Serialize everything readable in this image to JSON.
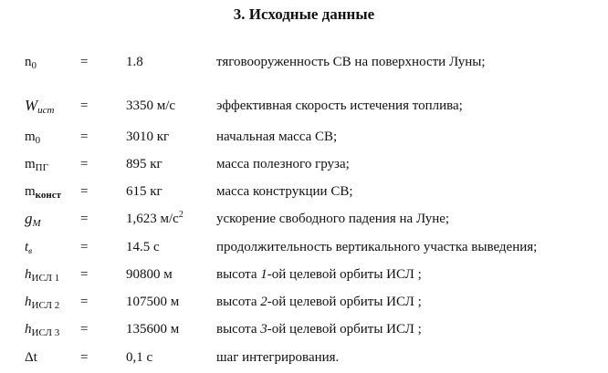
{
  "title": "3. Исходные данные",
  "rows": [
    {
      "sym": "n",
      "sub": "0",
      "eq": "=",
      "val": "1.8",
      "sup": "",
      "desc_pre": "тяговооруженность СВ на поверхности Луны;",
      "desc_it": "",
      "desc_post": ""
    },
    {
      "sym": "W",
      "sub": "ucm",
      "eq": "=",
      "val": "3350 м/с",
      "sup": "",
      "desc_pre": "эффективная скорость истечения топлива;",
      "desc_it": "",
      "desc_post": ""
    },
    {
      "sym": "m",
      "sub": "0",
      "eq": "=",
      "val": "3010 кг",
      "sup": "",
      "desc_pre": "начальная масса СВ;",
      "desc_it": "",
      "desc_post": ""
    },
    {
      "sym": "m",
      "sub": "ПГ",
      "eq": "=",
      "val": "895 кг",
      "sup": "",
      "desc_pre": "масса полезного груза;",
      "desc_it": "",
      "desc_post": ""
    },
    {
      "sym": "m",
      "sub": "конст",
      "eq": "=",
      "val": "615 кг",
      "sup": "",
      "desc_pre": "масса конструкции СВ;",
      "desc_it": "",
      "desc_post": ""
    },
    {
      "sym": "g",
      "sub": "М",
      "eq": "=",
      "val": "1,623 м/с",
      "sup": "2",
      "desc_pre": "ускорение свободного падения на Луне;",
      "desc_it": "",
      "desc_post": ""
    },
    {
      "sym": "t",
      "sub": "в",
      "eq": "=",
      "val": "14.5 с",
      "sup": "",
      "desc_pre": "продолжительность вертикального участка выведения;",
      "desc_it": "",
      "desc_post": ""
    },
    {
      "sym": "h",
      "sub": "ИСЛ 1",
      "eq": "=",
      "val": "90800 м",
      "sup": "",
      "desc_pre": "высота ",
      "desc_it": "1",
      "desc_post": "-ой целевой орбиты ИСЛ ;"
    },
    {
      "sym": "h",
      "sub": "ИСЛ 2",
      "eq": "=",
      "val": "107500 м",
      "sup": "",
      "desc_pre": "высота ",
      "desc_it": "2",
      "desc_post": "-ой целевой орбиты ИСЛ ;"
    },
    {
      "sym": "h",
      "sub": "ИСЛ 3",
      "eq": "=",
      "val": "135600 м",
      "sup": "",
      "desc_pre": "высота ",
      "desc_it": "3",
      "desc_post": "-ой целевой орбиты ИСЛ ;"
    },
    {
      "sym": "Δt",
      "sub": "",
      "eq": "=",
      "val": "0,1 с",
      "sup": "",
      "desc_pre": "шаг интегрирования.",
      "desc_it": "",
      "desc_post": ""
    }
  ]
}
